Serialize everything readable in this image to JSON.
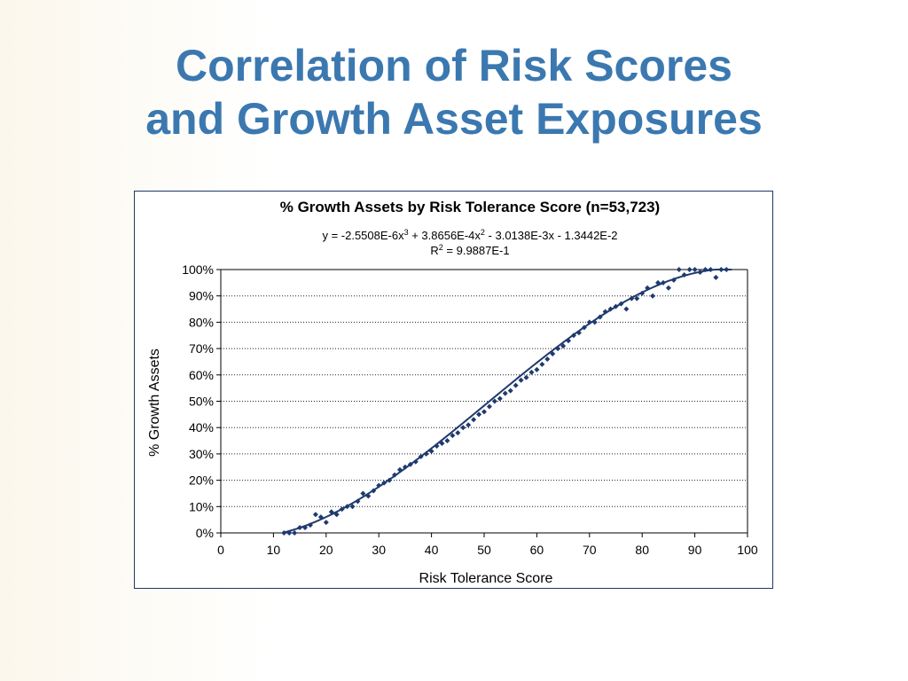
{
  "slide": {
    "title_line1": "Correlation of Risk Scores",
    "title_line2": "and Growth Asset Exposures"
  },
  "colors": {
    "title": "#3b78b0",
    "marker": "#1f3a6e",
    "trendline": "#1f3a6e",
    "frame": "#1f3864"
  },
  "chart_data": {
    "type": "scatter",
    "title": "% Growth Assets by Risk Tolerance Score (n=53,723)",
    "equation": {
      "prefix": "y = -2.5508E-6x",
      "sup1": "3",
      "mid1": " + 3.8656E-4x",
      "sup2": "2",
      "rest": " - 3.0138E-3x - 1.3442E-2"
    },
    "r_squared": {
      "prefix": "R",
      "sup": "2",
      "rest": " = 9.9887E-1"
    },
    "xlabel": "Risk Tolerance Score",
    "ylabel": "% Growth Assets",
    "xlim": [
      0,
      100
    ],
    "ylim": [
      0,
      1
    ],
    "x_ticks": [
      "0",
      "10",
      "20",
      "30",
      "40",
      "50",
      "60",
      "70",
      "80",
      "90",
      "100"
    ],
    "y_ticks": [
      "0%",
      "10%",
      "20%",
      "30%",
      "40%",
      "50%",
      "60%",
      "70%",
      "80%",
      "90%",
      "100%"
    ],
    "grid": "horizontal dotted",
    "legend": "none",
    "trendline": {
      "type": "polynomial-3",
      "coefficients": [
        -2.5508e-06,
        0.00038656,
        -0.0030138,
        -0.013442
      ],
      "x_range": [
        12,
        97
      ]
    },
    "series": [
      {
        "marker": "diamond",
        "x": [
          12,
          13,
          14,
          15,
          16,
          17,
          18,
          19,
          20,
          21,
          22,
          23,
          24,
          25,
          26,
          27,
          28,
          29,
          30,
          31,
          32,
          33,
          34,
          35,
          36,
          37,
          38,
          39,
          40,
          41,
          42,
          43,
          44,
          45,
          46,
          47,
          48,
          49,
          50,
          51,
          52,
          53,
          54,
          55,
          56,
          57,
          58,
          59,
          60,
          61,
          62,
          63,
          64,
          65,
          66,
          67,
          68,
          69,
          70,
          71,
          72,
          73,
          74,
          75,
          76,
          77,
          78,
          79,
          80,
          81,
          82,
          83,
          84,
          85,
          86,
          87,
          88,
          89,
          90,
          91,
          92,
          93,
          94,
          95,
          96
        ],
        "y": [
          0.0,
          0.0,
          0.0,
          0.02,
          0.02,
          0.03,
          0.07,
          0.06,
          0.04,
          0.08,
          0.07,
          0.09,
          0.1,
          0.1,
          0.12,
          0.15,
          0.14,
          0.16,
          0.18,
          0.19,
          0.2,
          0.22,
          0.24,
          0.25,
          0.26,
          0.27,
          0.29,
          0.3,
          0.31,
          0.33,
          0.34,
          0.35,
          0.37,
          0.38,
          0.4,
          0.41,
          0.43,
          0.45,
          0.46,
          0.48,
          0.5,
          0.51,
          0.53,
          0.54,
          0.56,
          0.58,
          0.59,
          0.61,
          0.62,
          0.64,
          0.66,
          0.68,
          0.7,
          0.71,
          0.73,
          0.75,
          0.76,
          0.78,
          0.8,
          0.8,
          0.82,
          0.84,
          0.85,
          0.86,
          0.87,
          0.85,
          0.89,
          0.89,
          0.91,
          0.93,
          0.9,
          0.95,
          0.95,
          0.93,
          0.96,
          1.0,
          0.98,
          1.0,
          1.0,
          0.99,
          1.0,
          1.0,
          0.97,
          1.0,
          1.0
        ]
      }
    ]
  }
}
